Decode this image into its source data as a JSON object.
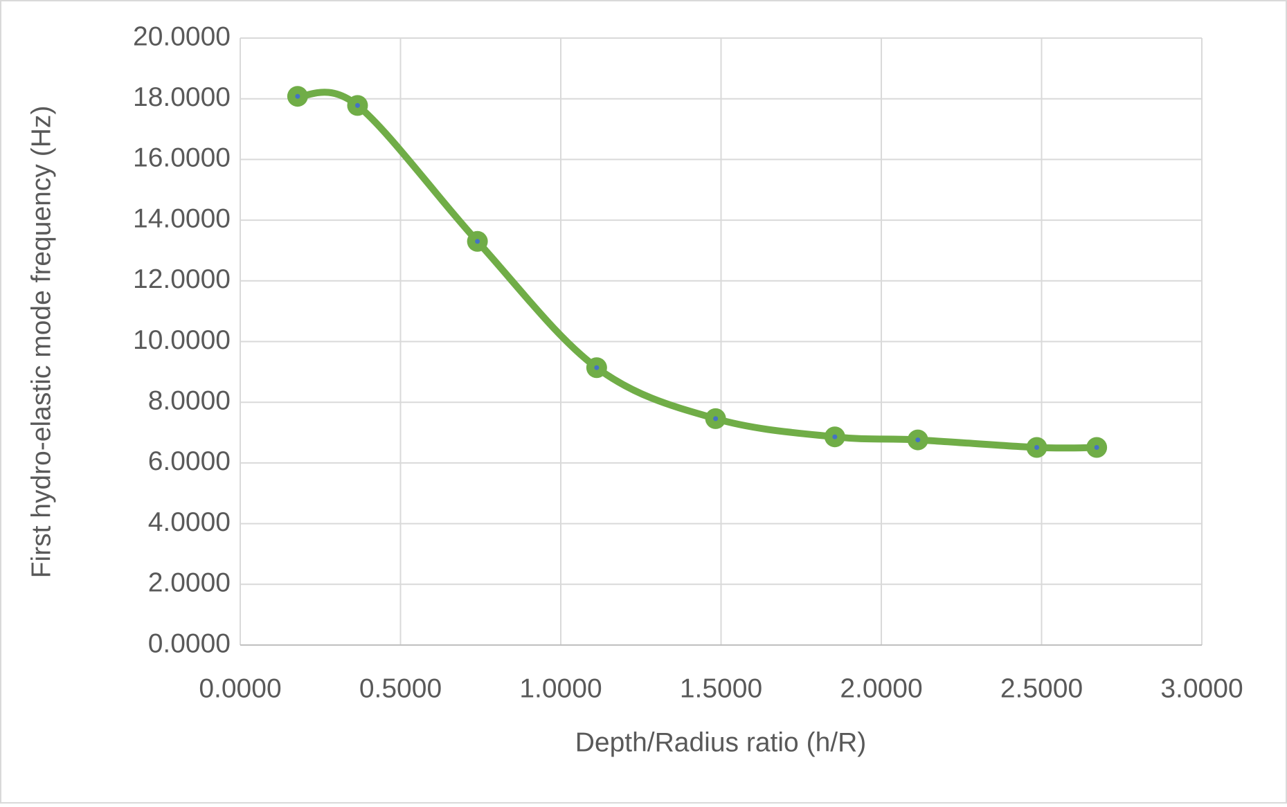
{
  "chart_data": {
    "type": "scatter-smooth",
    "x_label": "Depth/Radius ratio (h/R)",
    "y_label": "First hydro-elastic mode frequency (Hz)",
    "series": [
      {
        "color": "#70ad47",
        "marker_center": "#4472c4",
        "x": [
          0.179,
          0.366,
          0.74,
          1.112,
          1.483,
          1.855,
          2.114,
          2.485,
          2.672
        ],
        "values": [
          18.08,
          17.78,
          13.3,
          9.14,
          7.46,
          6.86,
          6.76,
          6.51,
          6.51
        ]
      }
    ],
    "xlim": [
      0,
      3
    ],
    "ylim": [
      0,
      20
    ],
    "xticks": [
      {
        "value": 0,
        "label": "0.0000"
      },
      {
        "value": 0.5,
        "label": "0.5000"
      },
      {
        "value": 1,
        "label": "1.0000"
      },
      {
        "value": 1.5,
        "label": "1.5000"
      },
      {
        "value": 2,
        "label": "2.0000"
      },
      {
        "value": 2.5,
        "label": "2.5000"
      },
      {
        "value": 3,
        "label": "3.0000"
      }
    ],
    "yticks": [
      {
        "value": 0,
        "label": "0.0000"
      },
      {
        "value": 2,
        "label": "2.0000"
      },
      {
        "value": 4,
        "label": "4.0000"
      },
      {
        "value": 6,
        "label": "6.0000"
      },
      {
        "value": 8,
        "label": "8.0000"
      },
      {
        "value": 10,
        "label": "10.0000"
      },
      {
        "value": 12,
        "label": "12.0000"
      },
      {
        "value": 14,
        "label": "14.0000"
      },
      {
        "value": 16,
        "label": "16.0000"
      },
      {
        "value": 18,
        "label": "18.0000"
      },
      {
        "value": 20,
        "label": "20.0000"
      }
    ],
    "grid": true
  }
}
